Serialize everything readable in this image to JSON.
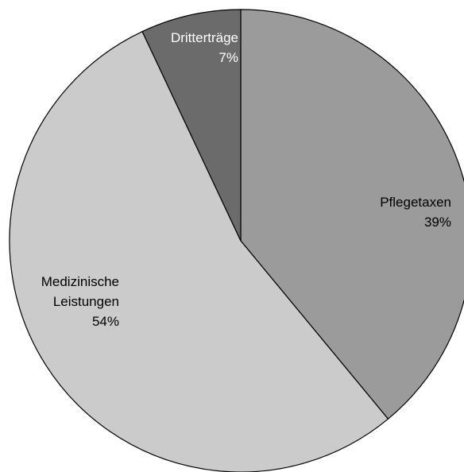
{
  "chart_data": {
    "type": "pie",
    "categories": [
      "Pflegetaxen",
      "Medizinische Leistungen",
      "Dritterträge"
    ],
    "values": [
      39,
      54,
      7
    ],
    "value_labels": [
      "39%",
      "54%",
      "7%"
    ],
    "colors": [
      "#9b9b9b",
      "#cbcbcb",
      "#6b6b6b"
    ],
    "label_colors": [
      "#000000",
      "#000000",
      "#ffffff"
    ]
  }
}
